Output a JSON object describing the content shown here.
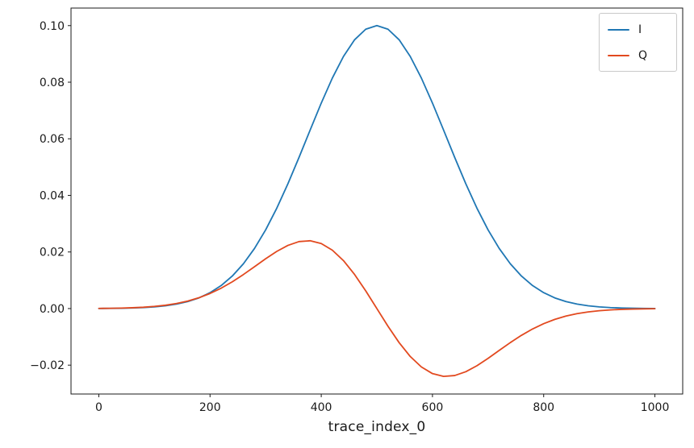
{
  "chart_data": {
    "type": "line",
    "title": "",
    "xlabel": "trace_index_0",
    "ylabel": "",
    "grid": false,
    "legend_location": "upper right",
    "xlim": [
      -50,
      1050
    ],
    "ylim": [
      -0.0302,
      0.1062
    ],
    "x_ticks": {
      "values": [
        0,
        200,
        400,
        600,
        800,
        1000
      ],
      "labels": [
        "0",
        "200",
        "400",
        "600",
        "800",
        "1000"
      ]
    },
    "y_ticks": {
      "values": [
        0.1,
        0.08,
        0.06,
        0.04,
        0.02,
        0.0,
        -0.02
      ],
      "labels": [
        "0.10",
        "0.08",
        "0.06",
        "0.04",
        "0.02",
        "0.00",
        "−0.02"
      ]
    },
    "x": [
      0,
      20,
      40,
      60,
      80,
      100,
      120,
      140,
      160,
      180,
      200,
      220,
      240,
      260,
      280,
      300,
      320,
      340,
      360,
      380,
      400,
      420,
      440,
      460,
      480,
      500,
      520,
      540,
      560,
      580,
      600,
      620,
      640,
      660,
      680,
      700,
      720,
      740,
      760,
      780,
      800,
      820,
      840,
      860,
      880,
      900,
      920,
      940,
      960,
      980,
      1000
    ],
    "series": [
      {
        "name": "I",
        "color": "#1f77b4",
        "values": [
          3e-05,
          6e-05,
          0.00011,
          0.0002,
          0.00035,
          0.0006,
          0.00098,
          0.00158,
          0.00247,
          0.00377,
          0.00561,
          0.00813,
          0.01149,
          0.01583,
          0.02125,
          0.0278,
          0.03546,
          0.04408,
          0.05341,
          0.06308,
          0.07261,
          0.08148,
          0.08912,
          0.09501,
          0.09873,
          0.1,
          0.09873,
          0.09501,
          0.08912,
          0.08148,
          0.07261,
          0.06308,
          0.05341,
          0.04408,
          0.03546,
          0.0278,
          0.02125,
          0.01583,
          0.01149,
          0.00813,
          0.00561,
          0.00377,
          0.00247,
          0.00158,
          0.00098,
          0.0006,
          0.00035,
          0.0002,
          0.00011,
          6e-05,
          3e-05
        ]
      },
      {
        "name": "Q",
        "color": "#e2491f",
        "values": [
          5e-05,
          0.0001,
          0.00017,
          0.00028,
          0.00047,
          0.00076,
          0.00118,
          0.0018,
          0.00266,
          0.00382,
          0.00533,
          0.00721,
          0.00946,
          0.01203,
          0.0148,
          0.0176,
          0.0202,
          0.02232,
          0.02367,
          0.02396,
          0.02299,
          0.02063,
          0.01693,
          0.01203,
          0.00625,
          0,
          -0.00625,
          -0.01203,
          -0.01693,
          -0.02063,
          -0.02299,
          -0.02396,
          -0.02367,
          -0.02232,
          -0.0202,
          -0.0176,
          -0.0148,
          -0.01203,
          -0.00946,
          -0.00721,
          -0.00533,
          -0.00382,
          -0.00266,
          -0.0018,
          -0.00118,
          -0.00076,
          -0.00047,
          -0.00028,
          -0.00017,
          -0.0001,
          -5e-05
        ]
      }
    ]
  }
}
